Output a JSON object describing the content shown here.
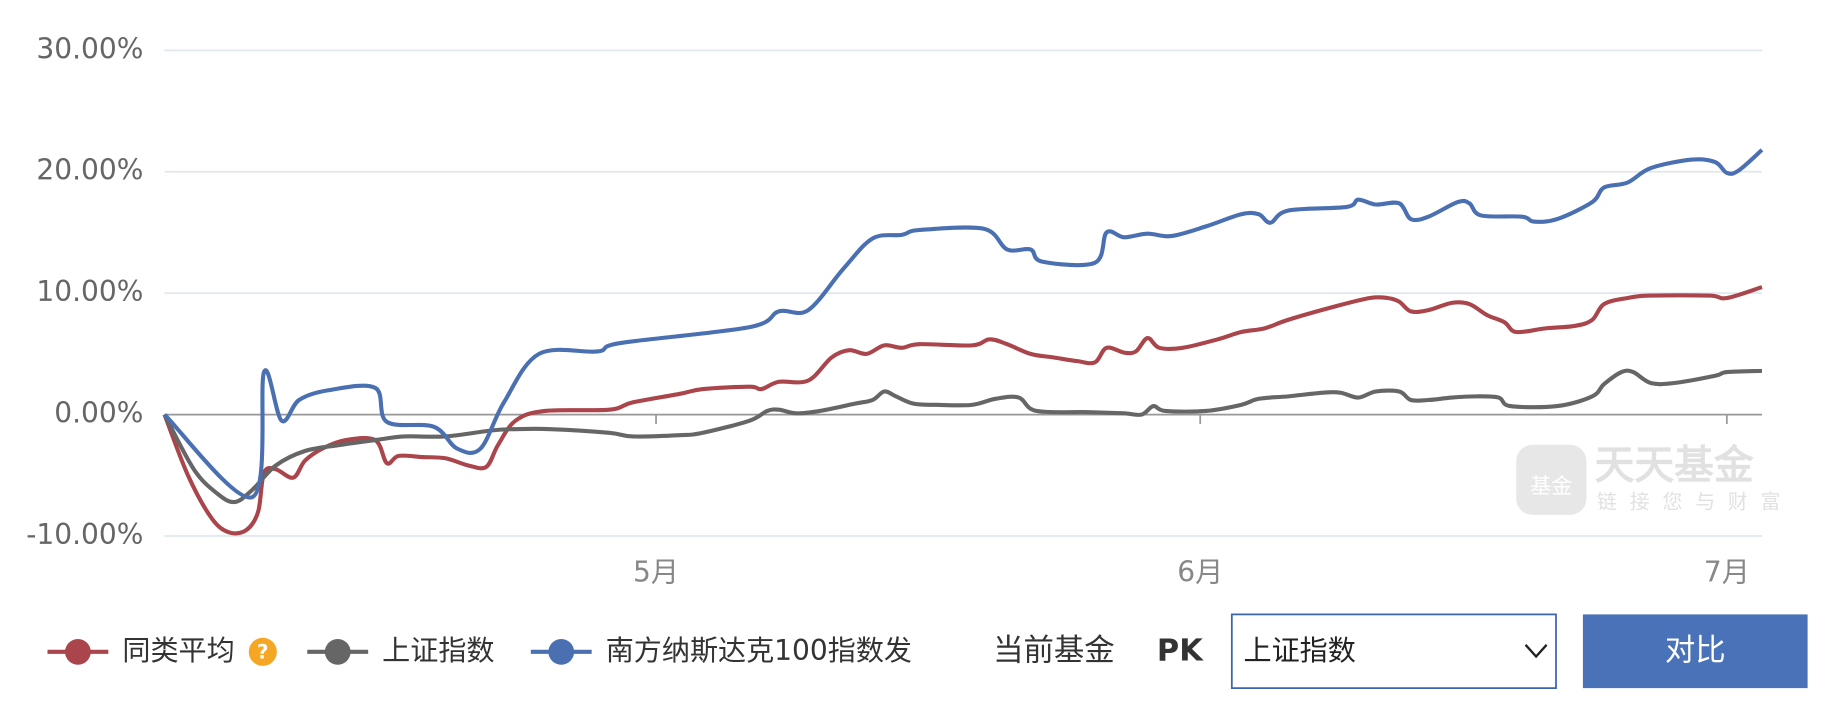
{
  "chart_data": {
    "type": "line",
    "xlim": [
      0,
      273
    ],
    "ylim": [
      -10,
      30
    ],
    "yticks": [
      {
        "value": -10,
        "label": "-10.00%"
      },
      {
        "value": 0,
        "label": "0.00%"
      },
      {
        "value": 10,
        "label": "10.00%"
      },
      {
        "value": 20,
        "label": "20.00%"
      },
      {
        "value": 30,
        "label": "30.00%"
      }
    ],
    "xticks": [
      {
        "value": 84,
        "label": "5月"
      },
      {
        "value": 177,
        "label": "6月"
      },
      {
        "value": 267,
        "label": "7月"
      }
    ],
    "grid": true,
    "series": [
      {
        "name": "同类平均",
        "color": "#a9454b",
        "x": [
          0,
          4,
          8,
          11,
          14,
          16,
          17,
          19,
          22,
          24,
          27,
          31,
          36,
          38,
          40,
          44,
          48,
          52,
          55,
          57,
          60,
          65,
          76,
          80,
          88,
          92,
          100,
          102,
          105,
          110,
          114,
          117,
          120,
          123,
          126,
          129,
          138,
          141,
          144,
          148,
          152,
          156,
          159,
          161,
          164,
          166,
          168,
          170,
          174,
          180,
          184,
          188,
          192,
          200,
          206,
          209,
          211,
          213,
          216,
          220,
          223,
          226,
          229,
          231,
          236,
          241,
          244,
          246,
          250,
          254,
          264,
          267,
          273
        ],
        "values": [
          0,
          -5,
          -8.5,
          -9.7,
          -9.5,
          -8,
          -4.8,
          -4.5,
          -5.2,
          -3.8,
          -2.8,
          -2.1,
          -2.1,
          -4,
          -3.4,
          -3.5,
          -3.6,
          -4.2,
          -4.3,
          -2.5,
          -0.5,
          0.3,
          0.4,
          1,
          1.7,
          2.1,
          2.3,
          2.1,
          2.7,
          2.8,
          4.7,
          5.3,
          5,
          5.7,
          5.5,
          5.8,
          5.7,
          6.2,
          5.8,
          5,
          4.7,
          4.4,
          4.3,
          5.5,
          5.1,
          5.2,
          6.3,
          5.5,
          5.5,
          6.2,
          6.8,
          7.1,
          7.8,
          8.9,
          9.6,
          9.6,
          9.3,
          8.5,
          8.6,
          9.2,
          9.1,
          8.2,
          7.6,
          6.8,
          7.1,
          7.3,
          7.8,
          9.1,
          9.6,
          9.8,
          9.8,
          9.6,
          10.5
        ]
      },
      {
        "name": "上证指数",
        "color": "#666666",
        "x": [
          0,
          5,
          9,
          12,
          15,
          19,
          24,
          30,
          36,
          41,
          48,
          56,
          60,
          66,
          76,
          80,
          88,
          92,
          100,
          103,
          105,
          108,
          112,
          118,
          121,
          123,
          125,
          128,
          132,
          138,
          142,
          146,
          149,
          158,
          164,
          167,
          169,
          171,
          178,
          184,
          187,
          192,
          198,
          201,
          204,
          207,
          211,
          213,
          216,
          220,
          224,
          228,
          230,
          238,
          244,
          246,
          249,
          251,
          254,
          258,
          265,
          267,
          273
        ],
        "values": [
          0,
          -4.5,
          -6.5,
          -7.2,
          -6.2,
          -4.2,
          -3,
          -2.5,
          -2.1,
          -1.8,
          -1.8,
          -1.3,
          -1.2,
          -1.2,
          -1.5,
          -1.8,
          -1.7,
          -1.5,
          -0.5,
          0.3,
          0.4,
          0.1,
          0.3,
          0.9,
          1.2,
          1.9,
          1.5,
          0.9,
          0.8,
          0.8,
          1.3,
          1.4,
          0.3,
          0.2,
          0.1,
          0,
          0.7,
          0.3,
          0.3,
          0.8,
          1.3,
          1.5,
          1.8,
          1.8,
          1.4,
          1.9,
          1.9,
          1.2,
          1.2,
          1.4,
          1.5,
          1.4,
          0.7,
          0.7,
          1.5,
          2.5,
          3.5,
          3.5,
          2.6,
          2.6,
          3.2,
          3.5,
          3.6
        ]
      },
      {
        "name": "南方纳斯达克100指数发",
        "color": "#4a70b2",
        "x": [
          0,
          15,
          17,
          20,
          23,
          28,
          36,
          38,
          46,
          50,
          54,
          58,
          64,
          74,
          78,
          100,
          105,
          110,
          116,
          121,
          126,
          129,
          140,
          144,
          148,
          150,
          159,
          161,
          164,
          168,
          172,
          178,
          184,
          187,
          189,
          192,
          202,
          204,
          207,
          211,
          213,
          216,
          221,
          223,
          225,
          232,
          234,
          238,
          244,
          246,
          250,
          254,
          261,
          265,
          267,
          269,
          273
        ],
        "values": [
          0,
          -6.8,
          3.5,
          -0.5,
          1.2,
          2,
          2.2,
          -0.6,
          -1,
          -2.8,
          -2.8,
          1,
          5,
          5.2,
          5.9,
          7.2,
          8.5,
          8.6,
          12,
          14.5,
          14.8,
          15.2,
          15.3,
          13.6,
          13.6,
          12.6,
          12.5,
          15,
          14.6,
          14.9,
          14.7,
          15.5,
          16.5,
          16.5,
          15.8,
          16.8,
          17.1,
          17.7,
          17.3,
          17.4,
          16.1,
          16.3,
          17.5,
          17.4,
          16.4,
          16.3,
          15.9,
          16.1,
          17.5,
          18.7,
          19.1,
          20.3,
          21,
          20.8,
          19.9,
          20.1,
          21.8
        ]
      }
    ],
    "help_icon": "?",
    "watermark": {
      "icon": "基金",
      "title": "天天基金",
      "slogan": "链接您与财富"
    }
  },
  "controls": {
    "current_fund": "当前基金",
    "pk": "PK",
    "select_value": "上证指数",
    "button": "对比"
  }
}
